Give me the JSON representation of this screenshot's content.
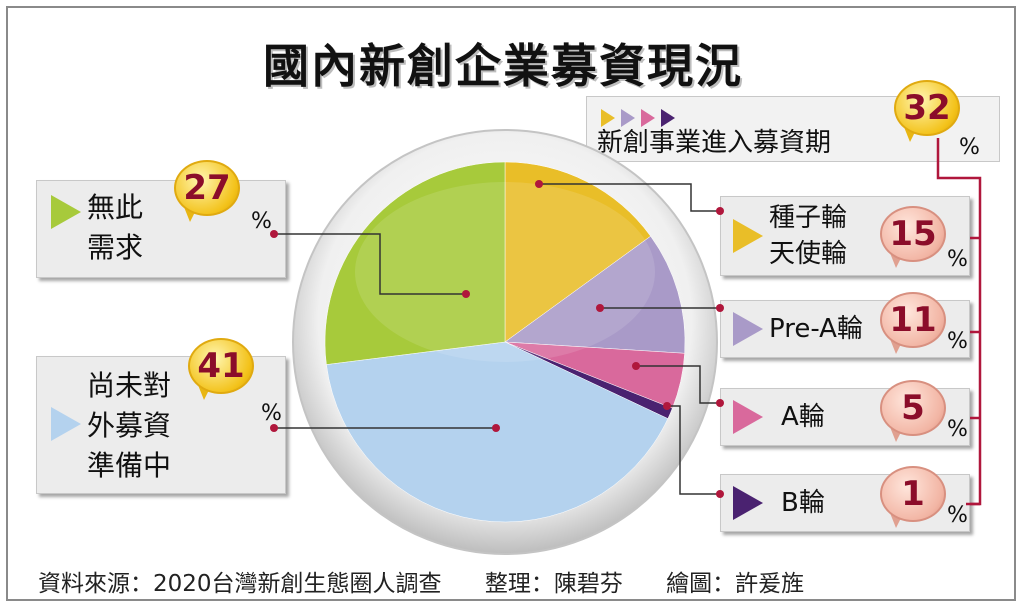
{
  "title": "國內新創企業募資現況",
  "chart_data": {
    "type": "pie",
    "title": "國內新創企業募資現況",
    "slices": [
      {
        "label": "種子輪 天使輪",
        "value": 15,
        "color": "#e9be28"
      },
      {
        "label": "Pre-A輪",
        "value": 11,
        "color": "#a99ac8"
      },
      {
        "label": "A輪",
        "value": 5,
        "color": "#d9699c"
      },
      {
        "label": "B輪",
        "value": 1,
        "color": "#4a2270"
      },
      {
        "label": "尚未對外募資準備中",
        "value": 41,
        "color": "#b4d2ee"
      },
      {
        "label": "無此需求",
        "value": 27,
        "color": "#a7ca3b"
      }
    ],
    "group": {
      "label": "新創事業進入募資期",
      "value": 32
    }
  },
  "labels": {
    "no_need": {
      "line1": "無此",
      "line2": "需求",
      "value": "27",
      "unit": "%"
    },
    "not_yet": {
      "line1": "尚未對",
      "line2": "外募資",
      "line3": "準備中",
      "value": "41",
      "unit": "%"
    },
    "group": {
      "label": "新創事業進入募資期",
      "value": "32",
      "unit": "%"
    },
    "seed": {
      "line1": "種子輪",
      "line2": "天使輪",
      "value": "15",
      "unit": "%"
    },
    "prea": {
      "label": "Pre-A輪",
      "value": "11",
      "unit": "%"
    },
    "a": {
      "label": "A輪",
      "value": "5",
      "unit": "%"
    },
    "b": {
      "label": "B輪",
      "value": "1",
      "unit": "%"
    }
  },
  "colors": {
    "seed": "#e9be28",
    "prea": "#a99ac8",
    "a": "#d9699c",
    "b": "#4a2270",
    "not_yet": "#b4d2ee",
    "no_need": "#a7ca3b",
    "accent": "#b0173c"
  },
  "footer": {
    "source": "資料來源：2020台灣新創生態圈人調查",
    "editor": "整理：陳碧芬",
    "artist": "繪圖：許爰旌"
  }
}
